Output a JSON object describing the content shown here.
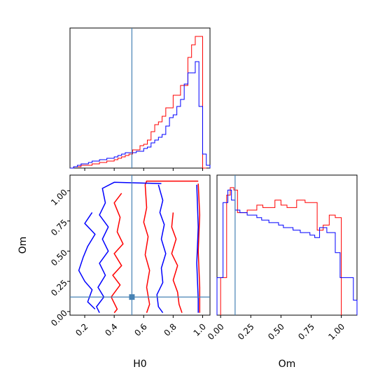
{
  "chart_data": [
    {
      "type": "histogram",
      "panel": "H0 marginal",
      "xlim": [
        0.1,
        1.05
      ],
      "truth": 0.52,
      "colors": {
        "run_a": "#ff0000",
        "run_b": "#0000ff",
        "truth": "#4682b4"
      },
      "series": [
        {
          "key": "run_a",
          "bin_edges": [
            0.1,
            0.125,
            0.15,
            0.175,
            0.2,
            0.225,
            0.25,
            0.275,
            0.3,
            0.325,
            0.35,
            0.375,
            0.4,
            0.425,
            0.45,
            0.475,
            0.5,
            0.525,
            0.55,
            0.575,
            0.6,
            0.625,
            0.65,
            0.675,
            0.7,
            0.725,
            0.75,
            0.775,
            0.8,
            0.825,
            0.85,
            0.875,
            0.9,
            0.925,
            0.95,
            0.975,
            1.0,
            1.025
          ],
          "counts": [
            0,
            0.01,
            0.01,
            0.02,
            0.02,
            0.02,
            0.03,
            0.03,
            0.04,
            0.04,
            0.05,
            0.05,
            0.06,
            0.07,
            0.08,
            0.09,
            0.1,
            0.13,
            0.13,
            0.16,
            0.17,
            0.2,
            0.26,
            0.31,
            0.33,
            0.37,
            0.43,
            0.43,
            0.52,
            0.52,
            0.59,
            0.59,
            0.79,
            0.88,
            0.94,
            0.94,
            0.0
          ]
        },
        {
          "key": "run_b",
          "bin_edges": [
            0.1,
            0.125,
            0.15,
            0.175,
            0.2,
            0.225,
            0.25,
            0.275,
            0.3,
            0.325,
            0.35,
            0.375,
            0.4,
            0.425,
            0.45,
            0.475,
            0.5,
            0.525,
            0.55,
            0.575,
            0.6,
            0.625,
            0.65,
            0.675,
            0.7,
            0.725,
            0.75,
            0.775,
            0.8,
            0.825,
            0.85,
            0.875,
            0.9,
            0.925,
            0.95,
            0.975,
            1.0,
            1.025,
            1.05
          ],
          "counts": [
            0,
            0.01,
            0.02,
            0.03,
            0.03,
            0.04,
            0.05,
            0.05,
            0.06,
            0.06,
            0.07,
            0.07,
            0.08,
            0.09,
            0.1,
            0.11,
            0.11,
            0.11,
            0.12,
            0.12,
            0.14,
            0.15,
            0.18,
            0.2,
            0.22,
            0.24,
            0.3,
            0.36,
            0.38,
            0.44,
            0.49,
            0.6,
            0.68,
            0.68,
            0.76,
            0.44,
            0.1,
            0.02
          ]
        }
      ]
    },
    {
      "type": "contour",
      "panel": "H0 vs Om",
      "xlabel": "H0",
      "ylabel": "Om",
      "xlim": [
        0.1,
        1.05
      ],
      "ylim": [
        -0.03,
        1.13
      ],
      "xticks": [
        "0.2",
        "0.4",
        "0.6",
        "0.8",
        "1.0"
      ],
      "yticks": [
        "0.00",
        "0.25",
        "0.50",
        "0.75",
        "1.00"
      ],
      "truth": {
        "x": 0.52,
        "y": 0.12
      },
      "contours": [
        {
          "key": "run_a",
          "points": [
            [
              0.97,
              1.08
            ],
            [
              0.62,
              1.08
            ],
            [
              0.61,
              1.05
            ],
            [
              0.62,
              0.86
            ],
            [
              0.6,
              0.74
            ],
            [
              0.63,
              0.62
            ],
            [
              0.61,
              0.47
            ],
            [
              0.64,
              0.34
            ],
            [
              0.62,
              0.2
            ],
            [
              0.64,
              0.06
            ],
            [
              0.62,
              -0.01
            ]
          ]
        },
        {
          "key": "run_a",
          "points": [
            [
              0.45,
              0.98
            ],
            [
              0.4,
              0.9
            ],
            [
              0.44,
              0.78
            ],
            [
              0.42,
              0.66
            ],
            [
              0.46,
              0.56
            ],
            [
              0.4,
              0.48
            ],
            [
              0.45,
              0.38
            ],
            [
              0.39,
              0.3
            ],
            [
              0.44,
              0.22
            ],
            [
              0.38,
              0.12
            ],
            [
              0.42,
              0.02
            ],
            [
              0.4,
              -0.01
            ]
          ]
        },
        {
          "key": "run_a",
          "points": [
            [
              0.8,
              0.82
            ],
            [
              0.79,
              0.7
            ],
            [
              0.82,
              0.6
            ],
            [
              0.79,
              0.48
            ],
            [
              0.83,
              0.38
            ],
            [
              0.8,
              0.26
            ],
            [
              0.83,
              0.16
            ],
            [
              0.84,
              0.06
            ],
            [
              0.86,
              -0.01
            ]
          ]
        },
        {
          "key": "run_a",
          "points": [
            [
              0.97,
              1.06
            ],
            [
              0.98,
              0.8
            ],
            [
              0.97,
              0.5
            ],
            [
              0.98,
              0.2
            ],
            [
              0.98,
              -0.01
            ]
          ]
        },
        {
          "key": "run_b",
          "points": [
            [
              0.72,
              1.06
            ],
            [
              0.4,
              1.07
            ],
            [
              0.32,
              1.02
            ],
            [
              0.34,
              0.9
            ],
            [
              0.3,
              0.8
            ],
            [
              0.36,
              0.7
            ],
            [
              0.32,
              0.6
            ],
            [
              0.36,
              0.5
            ],
            [
              0.3,
              0.4
            ],
            [
              0.34,
              0.3
            ],
            [
              0.29,
              0.2
            ],
            [
              0.33,
              0.12
            ],
            [
              0.28,
              0.04
            ],
            [
              0.3,
              -0.01
            ]
          ]
        },
        {
          "key": "run_b",
          "points": [
            [
              0.7,
              1.05
            ],
            [
              0.73,
              0.92
            ],
            [
              0.71,
              0.82
            ],
            [
              0.74,
              0.72
            ],
            [
              0.72,
              0.6
            ],
            [
              0.75,
              0.48
            ],
            [
              0.72,
              0.36
            ],
            [
              0.73,
              0.24
            ],
            [
              0.69,
              0.14
            ],
            [
              0.7,
              0.04
            ],
            [
              0.73,
              -0.01
            ]
          ]
        },
        {
          "key": "run_b",
          "points": [
            [
              0.25,
              0.82
            ],
            [
              0.2,
              0.73
            ],
            [
              0.27,
              0.64
            ],
            [
              0.22,
              0.54
            ],
            [
              0.19,
              0.45
            ],
            [
              0.16,
              0.34
            ],
            [
              0.2,
              0.25
            ],
            [
              0.25,
              0.18
            ],
            [
              0.22,
              0.08
            ],
            [
              0.27,
              0.02
            ]
          ]
        },
        {
          "key": "run_b",
          "points": [
            [
              0.96,
              1.05
            ],
            [
              0.97,
              0.7
            ],
            [
              0.96,
              0.4
            ],
            [
              0.97,
              0.1
            ],
            [
              0.97,
              -0.01
            ]
          ]
        }
      ]
    },
    {
      "type": "histogram",
      "panel": "Om marginal",
      "xlabel": "Om",
      "xlim": [
        -0.03,
        1.13
      ],
      "xticks": [
        "0.00",
        "0.25",
        "0.50",
        "0.75",
        "1.00"
      ],
      "truth": 0.12,
      "series": [
        {
          "key": "run_a",
          "bin_edges": [
            0.0,
            0.05,
            0.08,
            0.11,
            0.14,
            0.18,
            0.22,
            0.3,
            0.35,
            0.45,
            0.5,
            0.55,
            0.63,
            0.7,
            0.8,
            0.85,
            0.9,
            0.95,
            1.0
          ],
          "counts": [
            0.3,
            0.96,
            1.02,
            1.0,
            0.82,
            0.82,
            0.84,
            0.88,
            0.86,
            0.92,
            0.88,
            0.86,
            0.92,
            0.9,
            0.68,
            0.72,
            0.8,
            0.78
          ]
        },
        {
          "key": "run_b",
          "bin_edges": [
            -0.03,
            0.02,
            0.06,
            0.09,
            0.12,
            0.16,
            0.22,
            0.3,
            0.34,
            0.4,
            0.48,
            0.52,
            0.6,
            0.66,
            0.74,
            0.78,
            0.82,
            0.88,
            0.95,
            0.99,
            1.1,
            1.13
          ],
          "counts": [
            0.3,
            0.9,
            1.0,
            0.92,
            0.84,
            0.82,
            0.8,
            0.78,
            0.76,
            0.74,
            0.72,
            0.7,
            0.68,
            0.66,
            0.64,
            0.62,
            0.7,
            0.66,
            0.5,
            0.3,
            0.12
          ]
        }
      ]
    }
  ]
}
